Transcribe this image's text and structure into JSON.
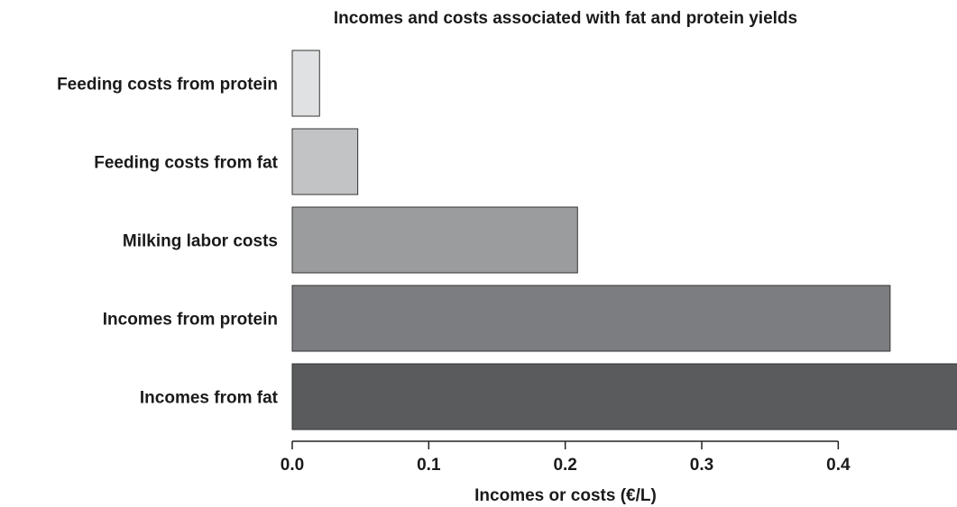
{
  "chart_data": {
    "type": "bar",
    "orientation": "horizontal",
    "title": "Incomes and costs associated with fat and protein yields",
    "xlabel": "Incomes or costs (€/L)",
    "ylabel": "",
    "xlim": [
      0,
      0.487
    ],
    "xticks": [
      0.0,
      0.1,
      0.2,
      0.3,
      0.4
    ],
    "xtick_labels": [
      "0.0",
      "0.1",
      "0.2",
      "0.3",
      "0.4"
    ],
    "grid": false,
    "categories": [
      "Feeding costs from protein",
      "Feeding costs from fat",
      "Milking labor costs",
      "Incomes from protein",
      "Incomes from fat"
    ],
    "values": [
      0.02,
      0.048,
      0.209,
      0.438,
      0.49
    ],
    "colors": [
      "#e0e1e3",
      "#c2c3c5",
      "#9b9c9e",
      "#7c7d80",
      "#5a5b5d"
    ]
  }
}
